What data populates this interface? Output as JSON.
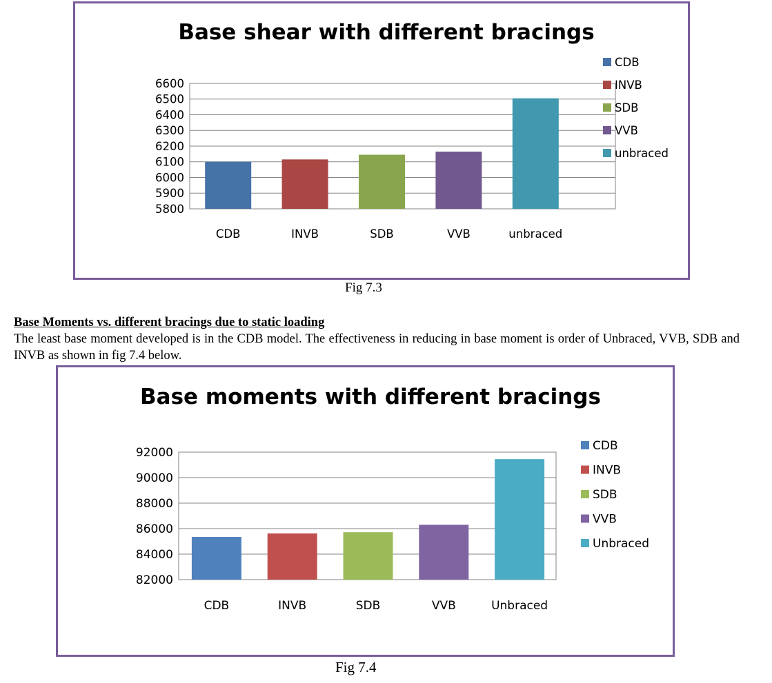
{
  "charts": [
    {
      "caption": "Fig 7.3",
      "chart_data": {
        "type": "bar",
        "title": "Base shear with different bracings",
        "xlabel": "",
        "ylabel": "",
        "categories": [
          "CDB",
          "INVB",
          "SDB",
          "VVB",
          "unbraced"
        ],
        "values": [
          6100,
          6115,
          6145,
          6165,
          6505
        ],
        "colors": [
          "#4572a7",
          "#aa4643",
          "#89a54e",
          "#71588f",
          "#4198af"
        ],
        "yticks": [
          5800,
          5900,
          6000,
          6100,
          6200,
          6300,
          6400,
          6500,
          6600
        ],
        "ylim": [
          5800,
          6600
        ],
        "grid": true,
        "legend": {
          "position": "right",
          "entries": [
            "CDB",
            "INVB",
            "SDB",
            "VVB",
            "unbraced"
          ]
        }
      }
    },
    {
      "caption": "Fig 7.4",
      "chart_data": {
        "type": "bar",
        "title": "Base moments with different bracings",
        "xlabel": "",
        "ylabel": "",
        "categories": [
          "CDB",
          "INVB",
          "SDB",
          "VVB",
          "Unbraced"
        ],
        "values": [
          85350,
          85620,
          85720,
          86300,
          91450
        ],
        "colors": [
          "#4f81bd",
          "#c0504d",
          "#9bbb59",
          "#8064a2",
          "#4bacc6"
        ],
        "yticks": [
          82000,
          84000,
          86000,
          88000,
          90000,
          92000
        ],
        "ylim": [
          82000,
          92000
        ],
        "grid": true,
        "legend": {
          "position": "right",
          "entries": [
            "CDB",
            "INVB",
            "SDB",
            "VVB",
            "Unbraced"
          ]
        }
      }
    }
  ],
  "section": {
    "heading": "Base Moments vs. different bracings due to static loading",
    "body": "The least base moment developed is in the CDB model. The effectiveness in reducing in base moment is order of Unbraced, VVB, SDB and INVB as shown in fig 7.4 below."
  }
}
